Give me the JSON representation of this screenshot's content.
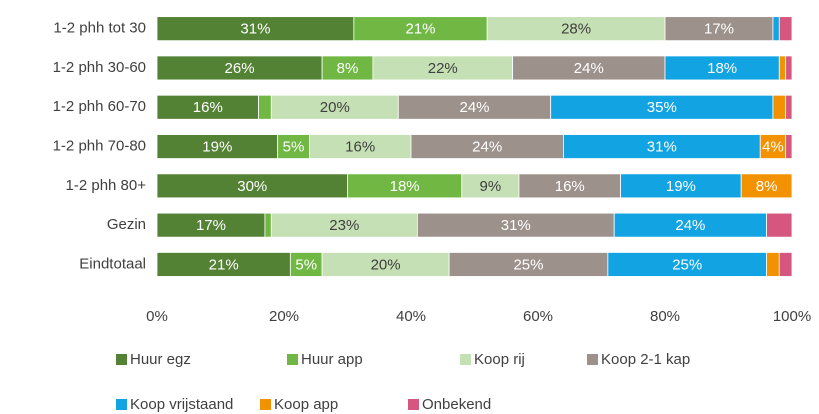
{
  "chart_data": {
    "type": "stacked_bar_horizontal",
    "categories": [
      "1-2 phh tot 30",
      "1-2 phh 30-60",
      "1-2 phh 60-70",
      "1-2 phh 70-80",
      "1-2 phh 80+",
      "Gezin",
      "Eindtotaal"
    ],
    "xlim": [
      0,
      100
    ],
    "xticks": [
      {
        "value": 0,
        "label": "0%"
      },
      {
        "value": 20,
        "label": "20%"
      },
      {
        "value": 40,
        "label": "40%"
      },
      {
        "value": 60,
        "label": "60%"
      },
      {
        "value": 80,
        "label": "80%"
      },
      {
        "value": 100,
        "label": "100%"
      }
    ],
    "legend": "bottom",
    "series": [
      {
        "name": "Huur egz",
        "color": "#548235",
        "values": [
          31,
          26,
          16,
          19,
          30,
          17,
          21
        ],
        "value_labels": [
          "31%",
          "26%",
          "16%",
          "19%",
          "30%",
          "17%",
          "21%"
        ]
      },
      {
        "name": "Huur app",
        "color": "#70b843",
        "values": [
          21,
          8,
          2,
          5,
          18,
          1,
          5
        ],
        "value_labels": [
          "21%",
          "8%",
          null,
          "5%",
          "18%",
          null,
          "5%"
        ]
      },
      {
        "name": "Koop rij",
        "color": "#c5e0b4",
        "values": [
          28,
          22,
          20,
          16,
          9,
          23,
          20
        ],
        "value_labels": [
          "28%",
          "22%",
          "20%",
          "16%",
          "9%",
          "23%",
          "20%"
        ]
      },
      {
        "name": "Koop 2-1 kap",
        "color": "#9d918c",
        "values": [
          17,
          24,
          24,
          24,
          16,
          31,
          25
        ],
        "value_labels": [
          "17%",
          "24%",
          "24%",
          "24%",
          "16%",
          "31%",
          "25%"
        ]
      },
      {
        "name": "Koop vrijstaand",
        "color": "#12a3e3",
        "values": [
          1,
          18,
          35,
          31,
          19,
          24,
          25
        ],
        "value_labels": [
          null,
          "18%",
          "35%",
          "31%",
          "19%",
          "24%",
          "25%"
        ]
      },
      {
        "name": "Koop app",
        "color": "#f39200",
        "values": [
          0,
          1,
          2,
          4,
          8,
          0,
          2
        ],
        "value_labels": [
          null,
          null,
          null,
          "4%",
          "8%",
          null,
          null
        ]
      },
      {
        "name": "Onbekend",
        "color": "#d5567e",
        "values": [
          2,
          1,
          1,
          1,
          0,
          4,
          2
        ],
        "value_labels": [
          null,
          null,
          null,
          null,
          null,
          null,
          null
        ]
      }
    ]
  }
}
